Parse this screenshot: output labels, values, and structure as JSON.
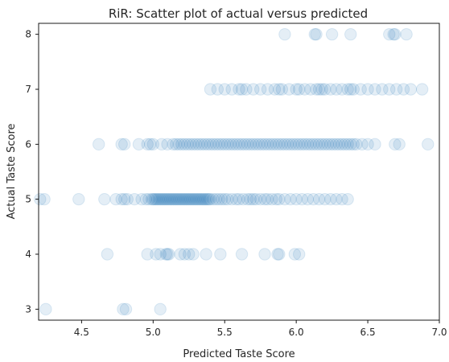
{
  "chart_data": {
    "type": "scatter",
    "title": "RiR: Scatter plot of actual versus predicted",
    "xlabel": "Predicted Taste Score",
    "ylabel": "Actual Taste Score",
    "xlim": [
      4.2,
      7.0
    ],
    "ylim": [
      2.8,
      8.2
    ],
    "xticks": [
      4.5,
      5.0,
      5.5,
      6.0,
      6.5,
      7.0
    ],
    "xtick_labels": [
      "4.5",
      "5.0",
      "5.5",
      "6.0",
      "6.5",
      "7.0"
    ],
    "yticks": [
      3,
      4,
      5,
      6,
      7,
      8
    ],
    "ytick_labels": [
      "3",
      "4",
      "5",
      "6",
      "7",
      "8"
    ],
    "grid": false,
    "marker_color": "#1f77b4",
    "marker_alpha": 0.12,
    "points": [
      {
        "y": 3,
        "x": [
          4.25,
          4.79,
          4.81,
          5.05
        ]
      },
      {
        "y": 4,
        "x": [
          4.68,
          4.96,
          5.02,
          5.05,
          5.09,
          5.1,
          5.11,
          5.19,
          5.22,
          5.25,
          5.28,
          5.37,
          5.47,
          5.62,
          5.78,
          5.87,
          5.88,
          5.99,
          6.02
        ]
      },
      {
        "y": 5,
        "x": [
          4.21,
          4.24,
          4.48,
          4.66,
          4.74,
          4.78,
          4.8,
          4.82,
          4.87,
          4.92,
          4.95,
          4.97,
          4.99,
          5.0,
          5.01,
          5.02,
          5.03,
          5.04,
          5.05,
          5.06,
          5.07,
          5.08,
          5.09,
          5.1,
          5.11,
          5.12,
          5.13,
          5.14,
          5.15,
          5.16,
          5.17,
          5.18,
          5.19,
          5.2,
          5.21,
          5.22,
          5.23,
          5.24,
          5.25,
          5.26,
          5.27,
          5.28,
          5.29,
          5.3,
          5.31,
          5.32,
          5.33,
          5.34,
          5.35,
          5.36,
          5.37,
          5.38,
          5.39,
          5.4,
          5.42,
          5.44,
          5.46,
          5.48,
          5.5,
          5.52,
          5.55,
          5.58,
          5.6,
          5.63,
          5.66,
          5.68,
          5.7,
          5.72,
          5.75,
          5.78,
          5.8,
          5.83,
          5.86,
          5.88,
          5.92,
          5.96,
          6.0,
          6.04,
          6.08,
          6.12,
          6.16,
          6.2,
          6.24,
          6.28,
          6.32,
          6.36
        ]
      },
      {
        "y": 6,
        "x": [
          4.62,
          4.78,
          4.8,
          4.9,
          4.96,
          4.98,
          5.0,
          5.06,
          5.1,
          5.14,
          5.16,
          5.18,
          5.2,
          5.22,
          5.24,
          5.26,
          5.28,
          5.3,
          5.32,
          5.34,
          5.36,
          5.38,
          5.4,
          5.42,
          5.44,
          5.46,
          5.48,
          5.5,
          5.52,
          5.54,
          5.56,
          5.58,
          5.6,
          5.62,
          5.64,
          5.66,
          5.68,
          5.7,
          5.72,
          5.74,
          5.76,
          5.78,
          5.8,
          5.82,
          5.84,
          5.86,
          5.88,
          5.9,
          5.92,
          5.94,
          5.96,
          5.98,
          6.0,
          6.02,
          6.04,
          6.06,
          6.08,
          6.1,
          6.12,
          6.14,
          6.16,
          6.18,
          6.2,
          6.22,
          6.24,
          6.26,
          6.28,
          6.3,
          6.32,
          6.34,
          6.36,
          6.38,
          6.4,
          6.42,
          6.46,
          6.5,
          6.55,
          6.69,
          6.72,
          6.92
        ]
      },
      {
        "y": 7,
        "x": [
          5.4,
          5.45,
          5.5,
          5.55,
          5.6,
          5.62,
          5.65,
          5.7,
          5.75,
          5.8,
          5.85,
          5.88,
          5.9,
          5.95,
          6.0,
          6.02,
          6.06,
          6.1,
          6.14,
          6.16,
          6.18,
          6.2,
          6.24,
          6.28,
          6.32,
          6.36,
          6.38,
          6.4,
          6.45,
          6.5,
          6.55,
          6.6,
          6.65,
          6.7,
          6.75,
          6.8,
          6.88
        ]
      },
      {
        "y": 8,
        "x": [
          5.92,
          6.13,
          6.14,
          6.25,
          6.38,
          6.65,
          6.68,
          6.69,
          6.77
        ]
      }
    ]
  }
}
